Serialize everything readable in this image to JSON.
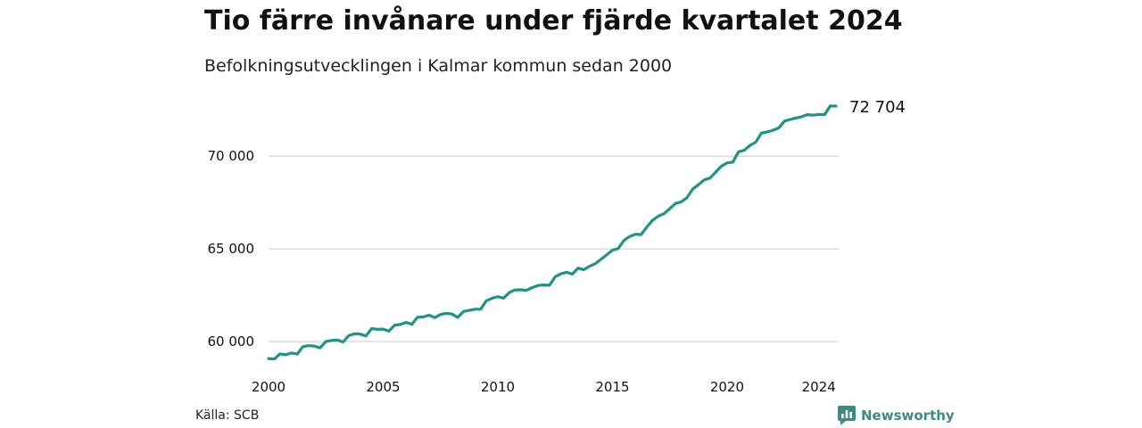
{
  "header": {
    "title": "Tio färre invånare under fjärde kvartalet 2024",
    "subtitle": "Befolkningsutvecklingen i Kalmar kommun sedan 2000"
  },
  "footer": {
    "source": "Källa: SCB",
    "brand": "Newsworthy"
  },
  "colors": {
    "line": "#1f9484",
    "grid": "#dddddd",
    "brand": "#3d8a84"
  },
  "chart_data": {
    "type": "line",
    "title": "Tio färre invånare under fjärde kvartalet 2024",
    "subtitle": "Befolkningsutvecklingen i Kalmar kommun sedan 2000",
    "xlabel": "",
    "ylabel": "",
    "xlim": [
      2000,
      2025
    ],
    "ylim": [
      58500,
      72704
    ],
    "x_ticks": [
      2000,
      2005,
      2010,
      2015,
      2020,
      2024
    ],
    "x_tick_labels": [
      "2000",
      "2005",
      "2010",
      "2015",
      "2020",
      "2024"
    ],
    "y_ticks": [
      60000,
      65000,
      70000
    ],
    "y_tick_labels": [
      "60 000",
      "65 000",
      "70 000"
    ],
    "grid": "horizontal",
    "legend": "none",
    "end_label": "72 704",
    "series": [
      {
        "x": [
          2000.0,
          2000.25,
          2000.5,
          2000.75,
          2001.0,
          2001.25,
          2001.5,
          2001.75,
          2002.0,
          2002.25,
          2002.5,
          2002.75,
          2003.0,
          2003.25,
          2003.5,
          2003.75,
          2004.0,
          2004.25,
          2004.5,
          2004.75,
          2005.0,
          2005.25,
          2005.5,
          2005.75,
          2006.0,
          2006.25,
          2006.5,
          2006.75,
          2007.0,
          2007.25,
          2007.5,
          2007.75,
          2008.0,
          2008.25,
          2008.5,
          2008.75,
          2009.0,
          2009.25,
          2009.5,
          2009.75,
          2010.0,
          2010.25,
          2010.5,
          2010.75,
          2011.0,
          2011.25,
          2011.5,
          2011.75,
          2012.0,
          2012.25,
          2012.5,
          2012.75,
          2013.0,
          2013.25,
          2013.5,
          2013.75,
          2014.0,
          2014.25,
          2014.5,
          2014.75,
          2015.0,
          2015.25,
          2015.5,
          2015.75,
          2016.0,
          2016.25,
          2016.5,
          2016.75,
          2017.0,
          2017.25,
          2017.5,
          2017.75,
          2018.0,
          2018.25,
          2018.5,
          2018.75,
          2019.0,
          2019.25,
          2019.5,
          2019.75,
          2020.0,
          2020.25,
          2020.5,
          2020.75,
          2021.0,
          2021.25,
          2021.5,
          2021.75,
          2022.0,
          2022.25,
          2022.5,
          2022.75,
          2023.0,
          2023.25,
          2023.5,
          2023.75,
          2024.0,
          2024.25,
          2024.5,
          2024.75
        ],
        "values": [
          59080,
          59050,
          59330,
          59290,
          59380,
          59320,
          59720,
          59780,
          59750,
          59660,
          60000,
          60060,
          60080,
          59970,
          60320,
          60420,
          60400,
          60300,
          60700,
          60660,
          60670,
          60560,
          60880,
          60920,
          61030,
          60930,
          61310,
          61330,
          61420,
          61290,
          61460,
          61520,
          61480,
          61300,
          61620,
          61680,
          61740,
          61740,
          62200,
          62340,
          62420,
          62340,
          62640,
          62780,
          62790,
          62760,
          62910,
          63020,
          63050,
          63030,
          63490,
          63650,
          63740,
          63640,
          63960,
          63880,
          64060,
          64200,
          64440,
          64680,
          64930,
          65020,
          65450,
          65670,
          65790,
          65770,
          66180,
          66540,
          66760,
          66900,
          67170,
          67450,
          67530,
          67760,
          68230,
          68460,
          68720,
          68820,
          69140,
          69460,
          69640,
          69680,
          70240,
          70320,
          70580,
          70760,
          71250,
          71310,
          71400,
          71530,
          71890,
          71980,
          72060,
          72130,
          72240,
          72220,
          72250,
          72240,
          72714,
          72704
        ]
      }
    ]
  }
}
